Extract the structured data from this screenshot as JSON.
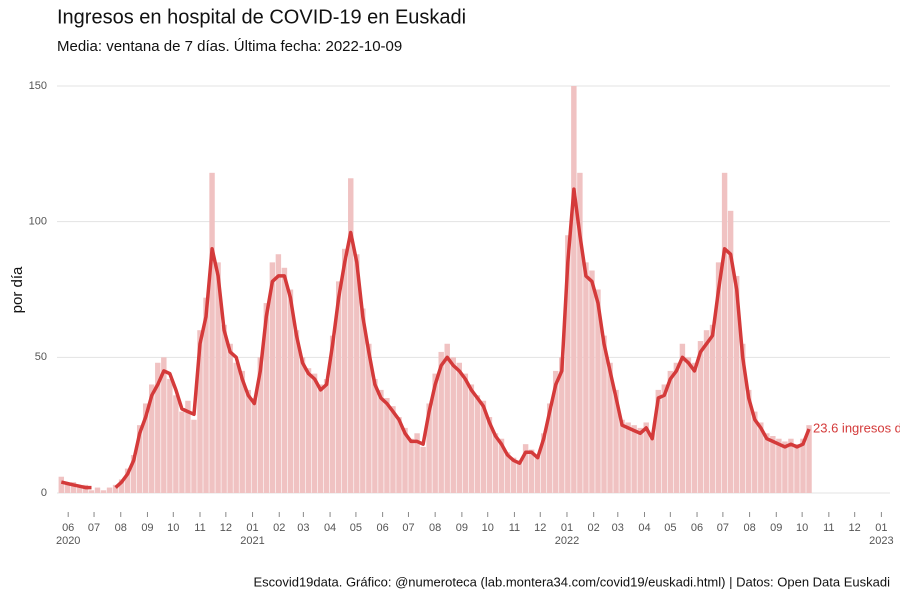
{
  "chart_data": {
    "type": "bar-line",
    "title": "Ingresos en hospital de COVID-19 en Euskadi",
    "subtitle": "Media: ventana de 7 días. Última fecha: 2022-10-09",
    "ylabel": "por día",
    "caption": "Escovid19data. Gráfico: @numeroteca (lab.montera34.com/covid19/euskadi.html) | Datos: Open Data Euskadi",
    "annotation": "23.6 ingresos d",
    "grid": true,
    "x": [
      "2020-05-24",
      "2020-05-31",
      "2020-06-07",
      "2020-06-14",
      "2020-06-21",
      "2020-06-28",
      "2020-07-05",
      "2020-07-12",
      "2020-07-19",
      "2020-07-26",
      "2020-08-02",
      "2020-08-09",
      "2020-08-16",
      "2020-08-23",
      "2020-08-30",
      "2020-09-06",
      "2020-09-13",
      "2020-09-20",
      "2020-09-27",
      "2020-10-04",
      "2020-10-11",
      "2020-10-18",
      "2020-10-25",
      "2020-11-01",
      "2020-11-08",
      "2020-11-15",
      "2020-11-22",
      "2020-11-29",
      "2020-12-06",
      "2020-12-13",
      "2020-12-20",
      "2020-12-27",
      "2021-01-03",
      "2021-01-10",
      "2021-01-17",
      "2021-01-24",
      "2021-01-31",
      "2021-02-07",
      "2021-02-14",
      "2021-02-21",
      "2021-02-28",
      "2021-03-07",
      "2021-03-14",
      "2021-03-21",
      "2021-03-28",
      "2021-04-04",
      "2021-04-11",
      "2021-04-18",
      "2021-04-25",
      "2021-05-02",
      "2021-05-09",
      "2021-05-16",
      "2021-05-23",
      "2021-05-30",
      "2021-06-06",
      "2021-06-13",
      "2021-06-20",
      "2021-06-27",
      "2021-07-04",
      "2021-07-11",
      "2021-07-18",
      "2021-07-25",
      "2021-08-01",
      "2021-08-08",
      "2021-08-15",
      "2021-08-22",
      "2021-08-29",
      "2021-09-05",
      "2021-09-12",
      "2021-09-19",
      "2021-09-26",
      "2021-10-03",
      "2021-10-10",
      "2021-10-17",
      "2021-10-24",
      "2021-10-31",
      "2021-11-07",
      "2021-11-14",
      "2021-11-21",
      "2021-11-28",
      "2021-12-05",
      "2021-12-12",
      "2021-12-19",
      "2021-12-26",
      "2022-01-02",
      "2022-01-09",
      "2022-01-16",
      "2022-01-23",
      "2022-01-30",
      "2022-02-06",
      "2022-02-13",
      "2022-02-20",
      "2022-02-27",
      "2022-03-06",
      "2022-03-13",
      "2022-03-20",
      "2022-03-27",
      "2022-04-03",
      "2022-04-10",
      "2022-04-17",
      "2022-04-24",
      "2022-05-01",
      "2022-05-08",
      "2022-05-15",
      "2022-05-22",
      "2022-05-29",
      "2022-06-05",
      "2022-06-12",
      "2022-06-19",
      "2022-06-26",
      "2022-07-03",
      "2022-07-10",
      "2022-07-17",
      "2022-07-24",
      "2022-07-31",
      "2022-08-07",
      "2022-08-14",
      "2022-08-21",
      "2022-08-28",
      "2022-09-04",
      "2022-09-11",
      "2022-09-18",
      "2022-09-25",
      "2022-10-02",
      "2022-10-09"
    ],
    "series": [
      {
        "kind": "bar",
        "color": "#f0c2c2",
        "values": [
          6,
          3,
          4,
          2,
          3,
          1,
          2,
          1,
          2,
          3,
          5,
          9,
          14,
          25,
          33,
          40,
          48,
          50,
          42,
          36,
          30,
          34,
          27,
          60,
          72,
          118,
          85,
          62,
          55,
          48,
          45,
          38,
          35,
          50,
          70,
          85,
          88,
          83,
          75,
          60,
          50,
          46,
          44,
          40,
          42,
          58,
          78,
          90,
          116,
          88,
          68,
          55,
          42,
          38,
          35,
          32,
          28,
          24,
          20,
          22,
          17,
          33,
          44,
          52,
          55,
          50,
          48,
          44,
          40,
          36,
          34,
          28,
          22,
          20,
          15,
          13,
          12,
          18,
          16,
          14,
          22,
          33,
          45,
          50,
          95,
          150,
          118,
          85,
          82,
          75,
          58,
          48,
          38,
          27,
          26,
          25,
          24,
          26,
          22,
          38,
          40,
          45,
          48,
          55,
          50,
          48,
          56,
          60,
          62,
          85,
          118,
          104,
          80,
          55,
          38,
          30,
          26,
          22,
          21,
          20,
          19,
          20,
          18,
          20,
          25
        ]
      },
      {
        "kind": "line",
        "color": "#d43a3a",
        "values": [
          4,
          3.5,
          3,
          2.5,
          2,
          2,
          null,
          null,
          null,
          2,
          4,
          7,
          12,
          22,
          28,
          36,
          40,
          45,
          44,
          38,
          31,
          30,
          29,
          55,
          65,
          90,
          80,
          60,
          52,
          50,
          42,
          36,
          33,
          45,
          65,
          78,
          80,
          80,
          72,
          58,
          48,
          44,
          42,
          38,
          40,
          55,
          72,
          85,
          96,
          85,
          65,
          52,
          40,
          35,
          33,
          30,
          27,
          22,
          19,
          19,
          18,
          30,
          40,
          47,
          50,
          47,
          45,
          42,
          38,
          35,
          32,
          26,
          21,
          18,
          14,
          12,
          11,
          15,
          15,
          13,
          20,
          30,
          40,
          45,
          85,
          112,
          95,
          80,
          78,
          70,
          55,
          45,
          35,
          25,
          24,
          23,
          22,
          24,
          20,
          35,
          36,
          42,
          45,
          50,
          48,
          45,
          52,
          55,
          58,
          75,
          90,
          88,
          75,
          50,
          35,
          27,
          24,
          20,
          19,
          18,
          17,
          18,
          17,
          18,
          23.6
        ]
      }
    ],
    "xlim": [
      "2020-05-19",
      "2023-01-11"
    ],
    "xticks": [
      {
        "value": "2020-06-01",
        "label": "06"
      },
      {
        "value": "2020-07-01",
        "label": "07"
      },
      {
        "value": "2020-08-01",
        "label": "08"
      },
      {
        "value": "2020-09-01",
        "label": "09"
      },
      {
        "value": "2020-10-01",
        "label": "10"
      },
      {
        "value": "2020-11-01",
        "label": "11"
      },
      {
        "value": "2020-12-01",
        "label": "12"
      },
      {
        "value": "2021-01-01",
        "label": "01"
      },
      {
        "value": "2021-02-01",
        "label": "02"
      },
      {
        "value": "2021-03-01",
        "label": "03"
      },
      {
        "value": "2021-04-01",
        "label": "04"
      },
      {
        "value": "2021-05-01",
        "label": "05"
      },
      {
        "value": "2021-06-01",
        "label": "06"
      },
      {
        "value": "2021-07-01",
        "label": "07"
      },
      {
        "value": "2021-08-01",
        "label": "08"
      },
      {
        "value": "2021-09-01",
        "label": "09"
      },
      {
        "value": "2021-10-01",
        "label": "10"
      },
      {
        "value": "2021-11-01",
        "label": "11"
      },
      {
        "value": "2021-12-01",
        "label": "12"
      },
      {
        "value": "2022-01-01",
        "label": "01"
      },
      {
        "value": "2022-02-01",
        "label": "02"
      },
      {
        "value": "2022-03-01",
        "label": "03"
      },
      {
        "value": "2022-04-01",
        "label": "04"
      },
      {
        "value": "2022-05-01",
        "label": "05"
      },
      {
        "value": "2022-06-01",
        "label": "06"
      },
      {
        "value": "2022-07-01",
        "label": "07"
      },
      {
        "value": "2022-08-01",
        "label": "08"
      },
      {
        "value": "2022-09-01",
        "label": "09"
      },
      {
        "value": "2022-10-01",
        "label": "10"
      },
      {
        "value": "2022-11-01",
        "label": "11"
      },
      {
        "value": "2022-12-01",
        "label": "12"
      },
      {
        "value": "2023-01-01",
        "label": "01"
      }
    ],
    "xyears": [
      {
        "value": "2020-06-01",
        "label": "2020"
      },
      {
        "value": "2021-01-01",
        "label": "2021"
      },
      {
        "value": "2022-01-01",
        "label": "2022"
      },
      {
        "value": "2023-01-01",
        "label": "2023"
      }
    ],
    "ylim": [
      0,
      150
    ],
    "yticks": [
      0,
      50,
      100,
      150
    ]
  }
}
